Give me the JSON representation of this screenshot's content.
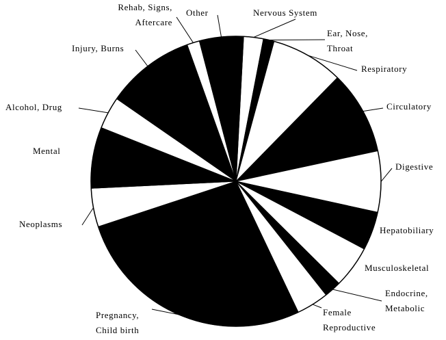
{
  "chart_data": {
    "type": "pie",
    "categories": [
      "Nervous System",
      "Ear, Nose,\nThroat",
      "Respiratory",
      "Circulatory",
      "Digestive",
      "Hepatobiliary",
      "Musculoskeletal",
      "Endocrine,\nMetabolic",
      "Female\nReproductive",
      "Pregnancy,\nChild birth",
      "Neoplasms",
      "Mental",
      "Alcohol, Drug",
      "Injury, Burns",
      "Rehab, Signs,\nAftercare",
      "Other"
    ],
    "values": [
      2.2,
      1.2,
      8.1,
      9.3,
      6.8,
      4.3,
      4.7,
      1.9,
      3.6,
      27.0,
      4.3,
      6.8,
      3.6,
      9.9,
      1.4,
      4.9
    ],
    "colors": [
      "#ffffff",
      "#000000",
      "#ffffff",
      "#000000",
      "#ffffff",
      "#000000",
      "#ffffff",
      "#000000",
      "#ffffff",
      "#000000",
      "#ffffff",
      "#000000",
      "#ffffff",
      "#000000",
      "#ffffff",
      "#000000"
    ]
  }
}
